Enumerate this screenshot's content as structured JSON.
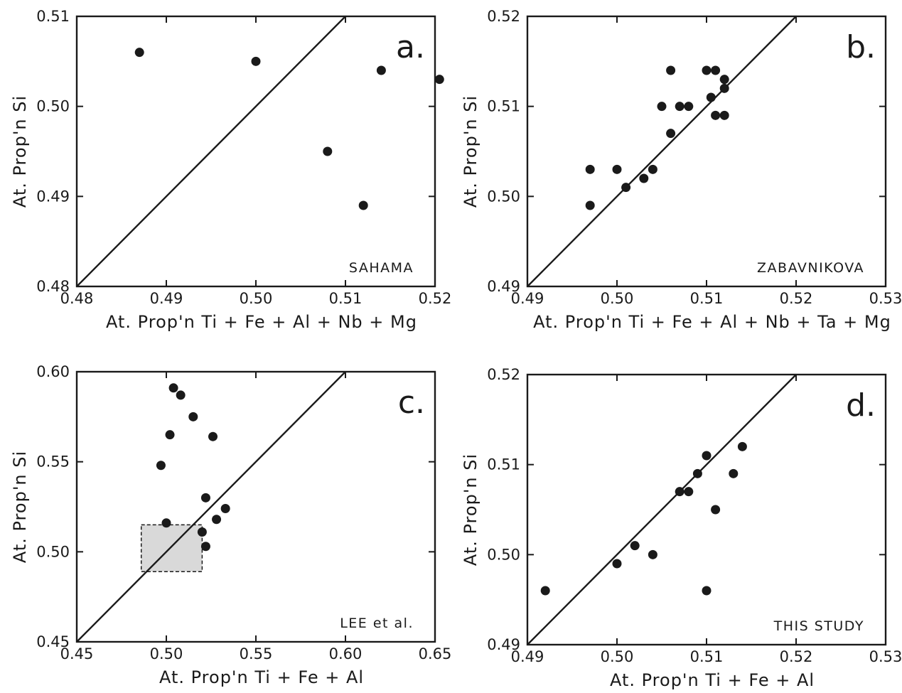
{
  "chart_data": [
    {
      "id": "a",
      "type": "scatter",
      "panel_label": "a.",
      "source_label": "SAHAMA",
      "xlabel": "At. Prop'n  Ti + Fe + Al + Nb + Mg",
      "ylabel": "At. Prop'n Si",
      "xlim": [
        0.48,
        0.52
      ],
      "ylim": [
        0.48,
        0.51
      ],
      "xticks": [
        0.48,
        0.49,
        0.5,
        0.51,
        0.52
      ],
      "xtick_labels": [
        "0.48",
        "0.49",
        "0.50",
        "0.51",
        "0.52"
      ],
      "yticks": [
        0.48,
        0.49,
        0.5,
        0.51
      ],
      "ytick_labels": [
        "0.48",
        "0.49",
        "0.50",
        "0.51"
      ],
      "reference_line": "1:1",
      "points": [
        {
          "x": 0.487,
          "y": 0.506
        },
        {
          "x": 0.5,
          "y": 0.505
        },
        {
          "x": 0.514,
          "y": 0.504
        },
        {
          "x": 0.5205,
          "y": 0.503
        },
        {
          "x": 0.508,
          "y": 0.495
        },
        {
          "x": 0.512,
          "y": 0.489
        }
      ]
    },
    {
      "id": "b",
      "type": "scatter",
      "panel_label": "b.",
      "source_label": "ZABAVNIKOVA",
      "xlabel": "At. Prop'n  Ti + Fe + Al + Nb + Ta + Mg",
      "ylabel": "At. Prop'n Si",
      "xlim": [
        0.49,
        0.53
      ],
      "ylim": [
        0.49,
        0.52
      ],
      "xticks": [
        0.49,
        0.5,
        0.51,
        0.52,
        0.53
      ],
      "xtick_labels": [
        "0.49",
        "0.50",
        "0.51",
        "0.52",
        "0.53"
      ],
      "yticks": [
        0.49,
        0.5,
        0.51,
        0.52
      ],
      "ytick_labels": [
        "0.49",
        "0.50",
        "0.51",
        "0.52"
      ],
      "reference_line": "1:1",
      "points": [
        {
          "x": 0.497,
          "y": 0.503
        },
        {
          "x": 0.497,
          "y": 0.499
        },
        {
          "x": 0.5,
          "y": 0.503
        },
        {
          "x": 0.501,
          "y": 0.501
        },
        {
          "x": 0.503,
          "y": 0.502
        },
        {
          "x": 0.504,
          "y": 0.503
        },
        {
          "x": 0.505,
          "y": 0.51
        },
        {
          "x": 0.506,
          "y": 0.514
        },
        {
          "x": 0.506,
          "y": 0.507
        },
        {
          "x": 0.507,
          "y": 0.51
        },
        {
          "x": 0.508,
          "y": 0.51
        },
        {
          "x": 0.51,
          "y": 0.514
        },
        {
          "x": 0.511,
          "y": 0.514
        },
        {
          "x": 0.5105,
          "y": 0.511
        },
        {
          "x": 0.511,
          "y": 0.509
        },
        {
          "x": 0.512,
          "y": 0.509
        },
        {
          "x": 0.512,
          "y": 0.512
        },
        {
          "x": 0.512,
          "y": 0.513
        }
      ]
    },
    {
      "id": "c",
      "type": "scatter",
      "panel_label": "c.",
      "source_label": "LEE  et  al.",
      "xlabel": "At. Prop'n  Ti + Fe + Al",
      "ylabel": "At. Prop'n Si",
      "xlim": [
        0.45,
        0.65
      ],
      "ylim": [
        0.45,
        0.6
      ],
      "xticks": [
        0.45,
        0.5,
        0.55,
        0.6,
        0.65
      ],
      "xtick_labels": [
        "0.45",
        "0.50",
        "0.55",
        "0.60",
        "0.65"
      ],
      "yticks": [
        0.45,
        0.5,
        0.55,
        0.6
      ],
      "ytick_labels": [
        "0.45",
        "0.50",
        "0.55",
        "0.60"
      ],
      "reference_line": "1:1",
      "shaded_region": {
        "x": [
          0.486,
          0.52
        ],
        "y": [
          0.489,
          0.515
        ]
      },
      "points": [
        {
          "x": 0.504,
          "y": 0.591
        },
        {
          "x": 0.508,
          "y": 0.587
        },
        {
          "x": 0.515,
          "y": 0.575
        },
        {
          "x": 0.502,
          "y": 0.565
        },
        {
          "x": 0.526,
          "y": 0.564
        },
        {
          "x": 0.497,
          "y": 0.548
        },
        {
          "x": 0.522,
          "y": 0.53
        },
        {
          "x": 0.533,
          "y": 0.524
        },
        {
          "x": 0.528,
          "y": 0.518
        },
        {
          "x": 0.5,
          "y": 0.516
        },
        {
          "x": 0.52,
          "y": 0.511
        },
        {
          "x": 0.522,
          "y": 0.503
        }
      ]
    },
    {
      "id": "d",
      "type": "scatter",
      "panel_label": "d.",
      "source_label": "THIS  STUDY",
      "xlabel": "At. Prop'n  Ti + Fe + Al",
      "ylabel": "At. Prop'n Si",
      "xlim": [
        0.49,
        0.53
      ],
      "ylim": [
        0.49,
        0.52
      ],
      "xticks": [
        0.49,
        0.5,
        0.51,
        0.52,
        0.53
      ],
      "xtick_labels": [
        "0.49",
        "0.50",
        "0.51",
        "0.52",
        "0.53"
      ],
      "yticks": [
        0.49,
        0.5,
        0.51,
        0.52
      ],
      "ytick_labels": [
        "0.49",
        "0.50",
        "0.51",
        "0.52"
      ],
      "reference_line": "1:1",
      "points": [
        {
          "x": 0.492,
          "y": 0.496
        },
        {
          "x": 0.5,
          "y": 0.499
        },
        {
          "x": 0.502,
          "y": 0.501
        },
        {
          "x": 0.504,
          "y": 0.5
        },
        {
          "x": 0.507,
          "y": 0.507
        },
        {
          "x": 0.508,
          "y": 0.507
        },
        {
          "x": 0.509,
          "y": 0.509
        },
        {
          "x": 0.51,
          "y": 0.511
        },
        {
          "x": 0.51,
          "y": 0.496
        },
        {
          "x": 0.511,
          "y": 0.505
        },
        {
          "x": 0.513,
          "y": 0.509
        },
        {
          "x": 0.514,
          "y": 0.512
        }
      ]
    }
  ]
}
